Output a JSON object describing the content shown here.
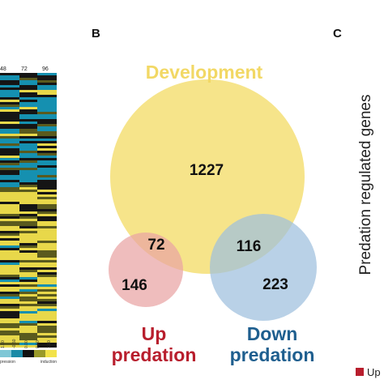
{
  "panel_b": {
    "letter": "B",
    "sets": {
      "development": {
        "label": "Development",
        "color": "#f5e07a",
        "label_color": "#f2d865"
      },
      "up_predation": {
        "label_line1": "Up",
        "label_line2": "predation",
        "color": "#e9a3a3",
        "label_color": "#b81e2d"
      },
      "down_predation": {
        "label_line1": "Down",
        "label_line2": "predation",
        "color": "#9ebfde",
        "label_color": "#1f5f8f"
      }
    },
    "counts": {
      "development_only": "1227",
      "development_up": "72",
      "development_down": "116",
      "up_only": "146",
      "down_only": "223"
    }
  },
  "panel_c": {
    "letter": "C",
    "axis_title": "Predation regulated genes",
    "legend_label": "Up",
    "legend_color": "#b81e2d"
  },
  "heatmap": {
    "column_labels": [
      "48",
      "72",
      "96"
    ],
    "scale_ticks": [
      "1.00",
      "-0.50",
      "0.00",
      "0.50",
      "1.00"
    ],
    "repression_label": "pression",
    "induction_label": "induction",
    "colors": {
      "yellow": "#e8d84a",
      "dark": "#151515",
      "teal": "#1590b0",
      "mid": "#5a5a1e"
    }
  }
}
